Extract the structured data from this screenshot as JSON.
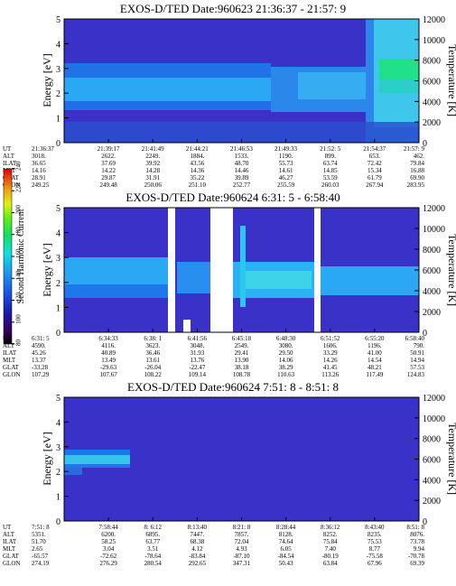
{
  "chart_data": [
    {
      "type": "heatmap",
      "title": "EXOS-D/TED   Date:960623  21:36:37 - 21:57: 9",
      "ylabel": "Energy [eV]",
      "y2label": "Temperature [K]",
      "ylim": [
        0,
        5
      ],
      "y2lim": [
        0,
        12000
      ],
      "yticks": [
        "0",
        "1",
        "2",
        "3",
        "4",
        "5"
      ],
      "y2ticks": [
        "0",
        "2000",
        "4000",
        "6000",
        "8000",
        "10000",
        "12000"
      ],
      "grid": false,
      "row_labels": [
        "UT",
        "ALT",
        "ILAT",
        "MLT",
        "GLAT",
        "GLON"
      ],
      "columns": [
        [
          "21:36:37",
          "3018.",
          "36.65",
          "14.16",
          "28.91",
          "249.25"
        ],
        [
          "21:39:17",
          "2622.",
          "37.69",
          "14.22",
          "29.87",
          "249.48"
        ],
        [
          "21:41:49",
          "2249.",
          "39.92",
          "14.28",
          "31.91",
          "250.06"
        ],
        [
          "21:44:21",
          "1884.",
          "43.56",
          "14.36",
          "35.22",
          "251.10"
        ],
        [
          "21:46:53",
          "1533.",
          "48.70",
          "14.46",
          "39.89",
          "252.77"
        ],
        [
          "21:49:33",
          "1190.",
          "55.73",
          "14.61",
          "46.27",
          "255.59"
        ],
        [
          "21:52: 5",
          "899.",
          "63.74",
          "14.85",
          "53.59",
          "260.03"
        ],
        [
          "21:54:37",
          "653.",
          "72.42",
          "15.34",
          "61.79",
          "267.94"
        ],
        [
          "21:57: 9",
          "462.",
          "79.84",
          "16.88",
          "69.90",
          "283.95"
        ]
      ]
    },
    {
      "type": "heatmap",
      "title": "EXOS-D/TED   Date:960624   6:31: 5 - 6:58:40",
      "ylabel": "Energy [eV]",
      "y2label": "Temperature [K]",
      "ylim": [
        0,
        5
      ],
      "y2lim": [
        0,
        12000
      ],
      "yticks": [
        "0",
        "1",
        "2",
        "3",
        "4",
        "5"
      ],
      "y2ticks": [
        "0",
        "2000",
        "4000",
        "6000",
        "8000",
        "10000",
        "12000"
      ],
      "grid": false,
      "row_labels": [
        "UT",
        "ALT",
        "ILAT",
        "MLT",
        "GLAT",
        "GLON"
      ],
      "columns": [
        [
          "6:31: 5",
          "4590.",
          "45.26",
          "13.37",
          "-33.28",
          "107.29"
        ],
        [
          "6:34:33",
          "4116.",
          "40.89",
          "13.49",
          "-29.63",
          "107.67"
        ],
        [
          "6:38: 1",
          "3623.",
          "36.46",
          "13.61",
          "-26.04",
          "108.22"
        ],
        [
          "6:41:56",
          "3048.",
          "31.93",
          "13.76",
          "-22.47",
          "109.14"
        ],
        [
          "6:45:18",
          "2549.",
          "29.41",
          "13.90",
          "38.18",
          "108.78"
        ],
        [
          "6:48:30",
          "3080.",
          "29.50",
          "14.06",
          "38.29",
          "110.63"
        ],
        [
          "6:51:52",
          "1606.",
          "33.29",
          "14.26",
          "41.45",
          "113.26"
        ],
        [
          "6:55:20",
          "1196.",
          "41.00",
          "14.54",
          "48.21",
          "117.49"
        ],
        [
          "6:58:40",
          "790.",
          "50.91",
          "14.94",
          "57.53",
          "124.83"
        ]
      ],
      "colorbar": {
        "label": "Second Harmonic Current",
        "ticks": [
          "80",
          "100",
          "120",
          "140",
          "160",
          "180",
          "200",
          "220",
          "240"
        ],
        "range": [
          80,
          240
        ]
      }
    },
    {
      "type": "heatmap",
      "title": "EXOS-D/TED   Date:960624   7:51: 8 - 8:51: 8",
      "ylabel": "Energy [eV]",
      "y2label": "Temperature [K]",
      "ylim": [
        0,
        5
      ],
      "y2lim": [
        0,
        12000
      ],
      "yticks": [
        "0",
        "1",
        "2",
        "3",
        "4",
        "5"
      ],
      "y2ticks": [
        "0",
        "2000",
        "4000",
        "6000",
        "8000",
        "10000",
        "12000"
      ],
      "grid": false,
      "row_labels": [
        "UT",
        "ALT",
        "ILAT",
        "MLT",
        "GLAT",
        "GLON"
      ],
      "columns": [
        [
          "7:51: 8",
          "5351.",
          "51.70",
          "2.65",
          "-65.57",
          "274.19"
        ],
        [
          "7:58:44",
          "6200.",
          "58.25",
          "3.04",
          "-72.62",
          "276.29"
        ],
        [
          "8: 6:12",
          "6895.",
          "63.77",
          "3.51",
          "-78.64",
          "280.54"
        ],
        [
          "8:13:40",
          "7447.",
          "68.38",
          "4.12",
          "-83.84",
          "292.65"
        ],
        [
          "8:21: 8",
          "7857.",
          "72.04",
          "4.93",
          "-87.10",
          "347.31"
        ],
        [
          "8:28:44",
          "8128.",
          "74.64",
          "6.05",
          "-84.54",
          "50.43"
        ],
        [
          "8:36:12",
          "8252.",
          "75.84",
          "7.40",
          "-80.19",
          "63.84"
        ],
        [
          "8:43:40",
          "8235.",
          "75.53",
          "8.77",
          "-75.58",
          "67.96"
        ],
        [
          "8:51: 8",
          "8076.",
          "73.78",
          "9.94",
          "-70.78",
          "69.39"
        ]
      ]
    }
  ]
}
